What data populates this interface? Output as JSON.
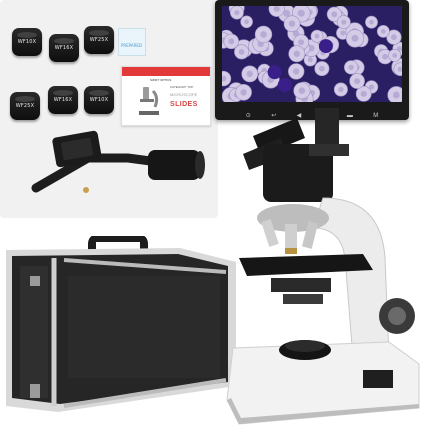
{
  "eyepieces": [
    {
      "label": "WF10X"
    },
    {
      "label": "WF16X"
    },
    {
      "label": "WF25X"
    },
    {
      "label": "WF25X"
    },
    {
      "label": "WF16X"
    },
    {
      "label": "WF10X"
    }
  ],
  "slide_box": {
    "brand": "SWIFT OPTICS",
    "category": "CATEGORY TOP",
    "title": "MICROSCOPE",
    "subtitle": "SLIDES"
  },
  "slide_pack": {
    "label": "PREPARED"
  },
  "monitor": {
    "buttons": [
      "⊙",
      "↩",
      "◀",
      "▶",
      "▬",
      "M"
    ]
  },
  "colors": {
    "accent_red": "#e23a3a",
    "screen_bg": "#2a1f63",
    "cell_color": "#d4cce6"
  }
}
